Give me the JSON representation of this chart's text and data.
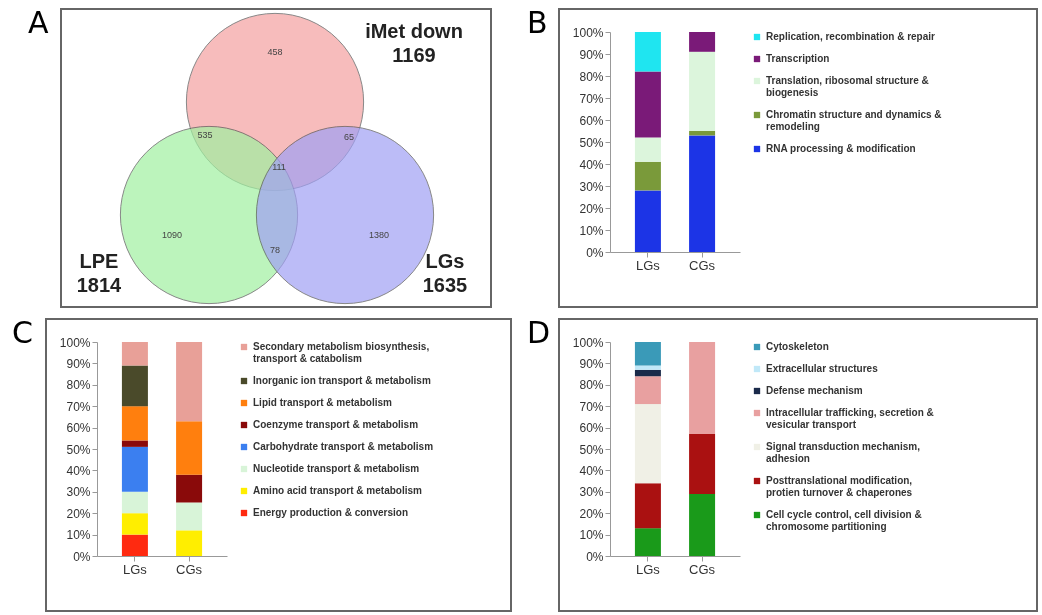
{
  "chart_data": [
    {
      "type": "other",
      "title": "A",
      "data_labels": true,
      "categories": [
        "iMet down",
        "LPE",
        "LGs"
      ],
      "values": [
        1169,
        1814,
        1635
      ],
      "colors": [
        "#f4a0a0",
        "#a0f0a0",
        "#a0a0f4"
      ],
      "annotations": [
        "458",
        "535",
        "65",
        "111",
        "1090",
        "78",
        "1380"
      ]
    },
    {
      "type": "bar",
      "title": "B",
      "stacked": true,
      "categories": [
        "LGs",
        "CGs"
      ],
      "ylim": [
        0,
        100
      ],
      "yticks": [
        {
          "value": 0,
          "label": "0%"
        },
        {
          "value": 10,
          "label": "10%"
        },
        {
          "value": 20,
          "label": "20%"
        },
        {
          "value": 30,
          "label": "30%"
        },
        {
          "value": 40,
          "label": "40%"
        },
        {
          "value": 50,
          "label": "50%"
        },
        {
          "value": 60,
          "label": "60%"
        },
        {
          "value": 70,
          "label": "70%"
        },
        {
          "value": 80,
          "label": "80%"
        },
        {
          "value": 90,
          "label": "90%"
        },
        {
          "value": 100,
          "label": "100%"
        }
      ],
      "legend": "right",
      "series": [
        {
          "name": "RNA processing & modification",
          "color": "#1c34e6",
          "values": [
            28,
            53
          ]
        },
        {
          "name": "Chromatin structure and dynamics & remodeling",
          "color": "#7a9a3a",
          "values": [
            13,
            2
          ]
        },
        {
          "name": "Translation, ribosomal structure & biogenesis",
          "color": "#dcf5dc",
          "values": [
            11,
            36
          ]
        },
        {
          "name": "Transcription",
          "color": "#7a1a78",
          "values": [
            30,
            9
          ]
        },
        {
          "name": "Replication, recombination & repair",
          "color": "#1fe5f0",
          "values": [
            18,
            0
          ]
        }
      ]
    },
    {
      "type": "bar",
      "title": "C",
      "stacked": true,
      "categories": [
        "LGs",
        "CGs"
      ],
      "ylim": [
        0,
        100
      ],
      "yticks": [
        {
          "value": 0,
          "label": "0%"
        },
        {
          "value": 10,
          "label": "10%"
        },
        {
          "value": 20,
          "label": "20%"
        },
        {
          "value": 30,
          "label": "30%"
        },
        {
          "value": 40,
          "label": "40%"
        },
        {
          "value": 50,
          "label": "50%"
        },
        {
          "value": 60,
          "label": "60%"
        },
        {
          "value": 70,
          "label": "70%"
        },
        {
          "value": 80,
          "label": "80%"
        },
        {
          "value": 90,
          "label": "90%"
        },
        {
          "value": 100,
          "label": "100%"
        }
      ],
      "legend": "right",
      "series": [
        {
          "name": "Energy production & conversion",
          "color": "#ff2a10",
          "values": [
            10,
            0
          ]
        },
        {
          "name": "Amino acid transport & metabolism",
          "color": "#ffee00",
          "values": [
            10,
            12
          ]
        },
        {
          "name": "Nucleotide transport & metabolism",
          "color": "#d8f4d8",
          "values": [
            10,
            13
          ]
        },
        {
          "name": "Carbohydrate transport & metabolism",
          "color": "#3b7ff0",
          "values": [
            21,
            0
          ]
        },
        {
          "name": "Coenzyme transport & metabolism",
          "color": "#8a0a0a",
          "values": [
            3,
            13
          ]
        },
        {
          "name": "Lipid transport & metabolism",
          "color": "#ff7f0e",
          "values": [
            16,
            25
          ]
        },
        {
          "name": "Inorganic ion transport & metabolism",
          "color": "#4a4a2a",
          "values": [
            19,
            0
          ]
        },
        {
          "name": "Secondary metabolism biosynthesis, transport & catabolism",
          "color": "#e8a098",
          "values": [
            11,
            37
          ]
        }
      ]
    },
    {
      "type": "bar",
      "title": "D",
      "stacked": true,
      "categories": [
        "LGs",
        "CGs"
      ],
      "ylim": [
        0,
        100
      ],
      "yticks": [
        {
          "value": 0,
          "label": "0%"
        },
        {
          "value": 10,
          "label": "10%"
        },
        {
          "value": 20,
          "label": "20%"
        },
        {
          "value": 30,
          "label": "30%"
        },
        {
          "value": 40,
          "label": "40%"
        },
        {
          "value": 50,
          "label": "50%"
        },
        {
          "value": 60,
          "label": "60%"
        },
        {
          "value": 70,
          "label": "70%"
        },
        {
          "value": 80,
          "label": "80%"
        },
        {
          "value": 90,
          "label": "90%"
        },
        {
          "value": 100,
          "label": "100%"
        }
      ],
      "legend": "right",
      "series": [
        {
          "name": "Cell cycle control, cell division & chromosome partitioning",
          "color": "#1a9a1a",
          "values": [
            13,
            29
          ]
        },
        {
          "name": "Posttranslational modification, protien turnover & chaperones",
          "color": "#aa1111",
          "values": [
            21,
            28
          ]
        },
        {
          "name": "Signal transduction mechanism, adhesion",
          "color": "#f0f0e6",
          "values": [
            37,
            0
          ]
        },
        {
          "name": "Intracellular trafficking, secretion & vesicular transport",
          "color": "#e8a0a0",
          "values": [
            13,
            43
          ]
        },
        {
          "name": "Defense mechanism",
          "color": "#1a2a4a",
          "values": [
            3,
            0
          ]
        },
        {
          "name": "Extracellular structures",
          "color": "#c0e8f8",
          "values": [
            2,
            0
          ]
        },
        {
          "name": "Cytoskeleton",
          "color": "#3a9ab8",
          "values": [
            11,
            0
          ]
        }
      ]
    }
  ]
}
